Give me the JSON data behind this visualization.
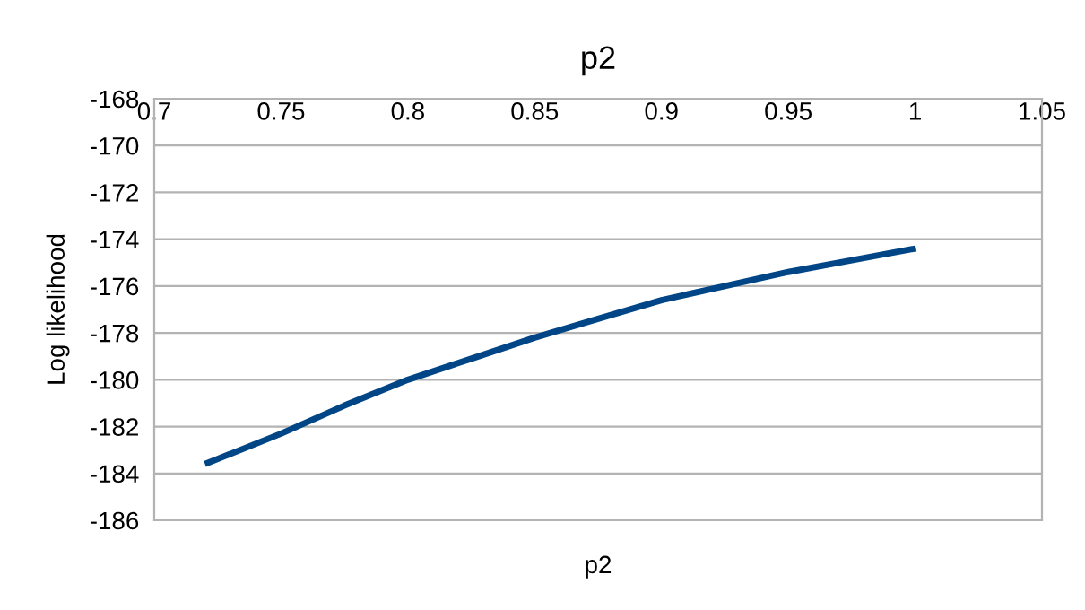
{
  "chart_data": {
    "type": "line",
    "title": "p2",
    "xlabel": "p2",
    "ylabel": "Log likelihood",
    "x": [
      0.72,
      0.75,
      0.775,
      0.8,
      0.825,
      0.85,
      0.875,
      0.9,
      0.925,
      0.95,
      0.975,
      1.0
    ],
    "series": [
      {
        "color": "#004586",
        "values": [
          -183.6,
          -182.3,
          -181.1,
          -180.0,
          -179.1,
          -178.2,
          -177.4,
          -176.6,
          -176.0,
          -175.4,
          -174.9,
          -174.4
        ]
      }
    ],
    "xlim": [
      0.7,
      1.05
    ],
    "xticks": [
      0.7,
      0.75,
      0.8,
      0.85,
      0.9,
      0.95,
      1,
      1.05
    ],
    "ylim": [
      -186,
      -168
    ],
    "yticks": [
      -186,
      -184,
      -182,
      -180,
      -178,
      -176,
      -174,
      -172,
      -170,
      -168
    ],
    "grid": "y",
    "marker": "none",
    "line_style": "solid"
  }
}
